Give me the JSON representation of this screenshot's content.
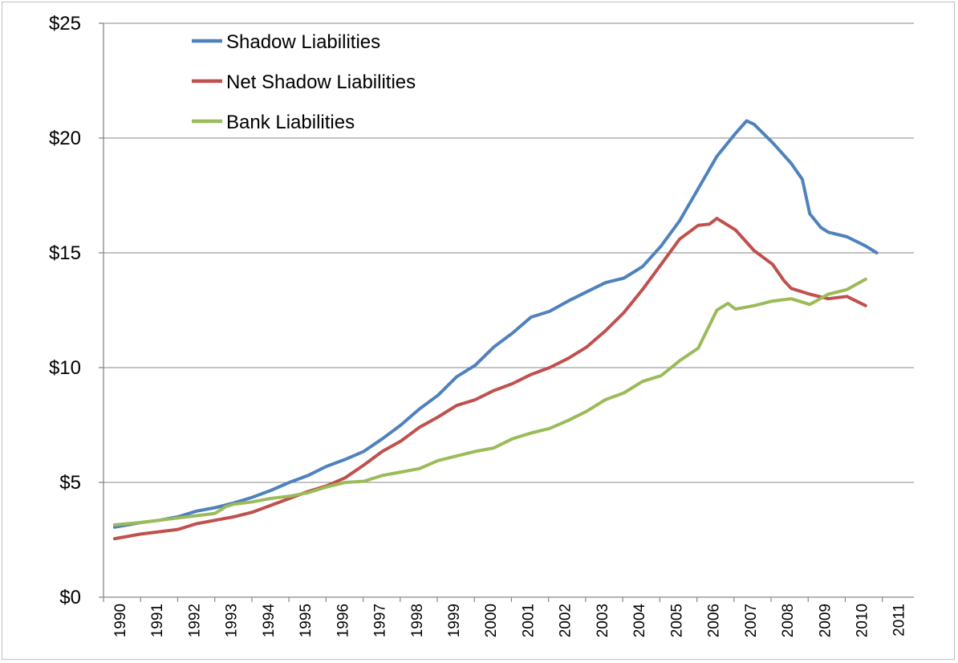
{
  "chart_data": {
    "type": "line",
    "title": "",
    "xlabel": "",
    "ylabel": "",
    "xlim": [
      1990.0,
      2011.8
    ],
    "ylim": [
      0,
      25
    ],
    "y_tick_values": [
      0,
      5,
      10,
      15,
      20,
      25
    ],
    "y_tick_labels": [
      "$0",
      "$5",
      "$10",
      "$15",
      "$20",
      "$25"
    ],
    "x_tick_labels": [
      "1990",
      "1991",
      "1992",
      "1993",
      "1994",
      "1995",
      "1996",
      "1997",
      "1998",
      "1999",
      "2000",
      "2001",
      "2002",
      "2003",
      "2004",
      "2005",
      "2006",
      "2007",
      "2008",
      "2009",
      "2010",
      "2011"
    ],
    "grid": "horizontal",
    "legend_position": "top-left",
    "series": [
      {
        "name": "Shadow Liabilities",
        "color": "#4f81bd",
        "points": [
          [
            1990.3,
            3.05
          ],
          [
            1991.0,
            3.25
          ],
          [
            1991.5,
            3.35
          ],
          [
            1992.0,
            3.5
          ],
          [
            1992.5,
            3.75
          ],
          [
            1993.0,
            3.9
          ],
          [
            1993.5,
            4.1
          ],
          [
            1994.0,
            4.35
          ],
          [
            1994.5,
            4.65
          ],
          [
            1995.0,
            5.0
          ],
          [
            1995.5,
            5.3
          ],
          [
            1996.0,
            5.7
          ],
          [
            1996.5,
            6.0
          ],
          [
            1997.0,
            6.35
          ],
          [
            1997.5,
            6.9
          ],
          [
            1998.0,
            7.5
          ],
          [
            1998.5,
            8.2
          ],
          [
            1999.0,
            8.8
          ],
          [
            1999.5,
            9.6
          ],
          [
            2000.0,
            10.1
          ],
          [
            2000.5,
            10.9
          ],
          [
            2001.0,
            11.5
          ],
          [
            2001.5,
            12.2
          ],
          [
            2002.0,
            12.45
          ],
          [
            2002.5,
            12.9
          ],
          [
            2003.0,
            13.3
          ],
          [
            2003.5,
            13.7
          ],
          [
            2004.0,
            13.9
          ],
          [
            2004.5,
            14.4
          ],
          [
            2005.0,
            15.3
          ],
          [
            2005.5,
            16.4
          ],
          [
            2006.0,
            17.8
          ],
          [
            2006.5,
            19.2
          ],
          [
            2007.0,
            20.2
          ],
          [
            2007.3,
            20.75
          ],
          [
            2007.5,
            20.6
          ],
          [
            2008.0,
            19.8
          ],
          [
            2008.5,
            18.9
          ],
          [
            2008.8,
            18.2
          ],
          [
            2009.0,
            16.7
          ],
          [
            2009.3,
            16.1
          ],
          [
            2009.5,
            15.9
          ],
          [
            2010.0,
            15.7
          ],
          [
            2010.5,
            15.3
          ],
          [
            2010.8,
            15.0
          ]
        ]
      },
      {
        "name": "Net Shadow Liabilities",
        "color": "#c0504d",
        "points": [
          [
            1990.3,
            2.55
          ],
          [
            1991.0,
            2.75
          ],
          [
            1991.5,
            2.85
          ],
          [
            1992.0,
            2.95
          ],
          [
            1992.5,
            3.2
          ],
          [
            1993.0,
            3.35
          ],
          [
            1993.5,
            3.5
          ],
          [
            1994.0,
            3.7
          ],
          [
            1994.5,
            4.0
          ],
          [
            1995.0,
            4.3
          ],
          [
            1995.5,
            4.6
          ],
          [
            1996.0,
            4.85
          ],
          [
            1996.5,
            5.2
          ],
          [
            1997.0,
            5.75
          ],
          [
            1997.5,
            6.35
          ],
          [
            1998.0,
            6.8
          ],
          [
            1998.5,
            7.4
          ],
          [
            1999.0,
            7.85
          ],
          [
            1999.5,
            8.35
          ],
          [
            2000.0,
            8.6
          ],
          [
            2000.5,
            9.0
          ],
          [
            2001.0,
            9.3
          ],
          [
            2001.5,
            9.7
          ],
          [
            2002.0,
            10.0
          ],
          [
            2002.5,
            10.4
          ],
          [
            2003.0,
            10.9
          ],
          [
            2003.5,
            11.6
          ],
          [
            2004.0,
            12.4
          ],
          [
            2004.5,
            13.4
          ],
          [
            2005.0,
            14.5
          ],
          [
            2005.5,
            15.6
          ],
          [
            2006.0,
            16.2
          ],
          [
            2006.3,
            16.25
          ],
          [
            2006.5,
            16.5
          ],
          [
            2007.0,
            16.0
          ],
          [
            2007.5,
            15.1
          ],
          [
            2008.0,
            14.5
          ],
          [
            2008.3,
            13.8
          ],
          [
            2008.5,
            13.45
          ],
          [
            2009.0,
            13.2
          ],
          [
            2009.5,
            13.0
          ],
          [
            2010.0,
            13.1
          ],
          [
            2010.5,
            12.7
          ]
        ]
      },
      {
        "name": "Bank Liabilities",
        "color": "#9bbb59",
        "points": [
          [
            1990.3,
            3.15
          ],
          [
            1991.0,
            3.25
          ],
          [
            1991.5,
            3.35
          ],
          [
            1992.0,
            3.45
          ],
          [
            1992.5,
            3.55
          ],
          [
            1993.0,
            3.65
          ],
          [
            1993.3,
            3.95
          ],
          [
            1993.5,
            4.05
          ],
          [
            1994.0,
            4.15
          ],
          [
            1994.5,
            4.3
          ],
          [
            1995.0,
            4.4
          ],
          [
            1995.5,
            4.55
          ],
          [
            1996.0,
            4.8
          ],
          [
            1996.5,
            5.0
          ],
          [
            1997.0,
            5.05
          ],
          [
            1997.5,
            5.3
          ],
          [
            1998.0,
            5.45
          ],
          [
            1998.5,
            5.6
          ],
          [
            1999.0,
            5.95
          ],
          [
            1999.5,
            6.15
          ],
          [
            2000.0,
            6.35
          ],
          [
            2000.5,
            6.5
          ],
          [
            2001.0,
            6.9
          ],
          [
            2001.5,
            7.15
          ],
          [
            2002.0,
            7.35
          ],
          [
            2002.5,
            7.7
          ],
          [
            2003.0,
            8.1
          ],
          [
            2003.5,
            8.6
          ],
          [
            2004.0,
            8.9
          ],
          [
            2004.5,
            9.4
          ],
          [
            2005.0,
            9.65
          ],
          [
            2005.5,
            10.3
          ],
          [
            2006.0,
            10.85
          ],
          [
            2006.5,
            12.5
          ],
          [
            2006.8,
            12.8
          ],
          [
            2007.0,
            12.55
          ],
          [
            2007.5,
            12.7
          ],
          [
            2008.0,
            12.9
          ],
          [
            2008.5,
            13.0
          ],
          [
            2009.0,
            12.75
          ],
          [
            2009.5,
            13.2
          ],
          [
            2010.0,
            13.4
          ],
          [
            2010.5,
            13.85
          ]
        ]
      }
    ]
  }
}
